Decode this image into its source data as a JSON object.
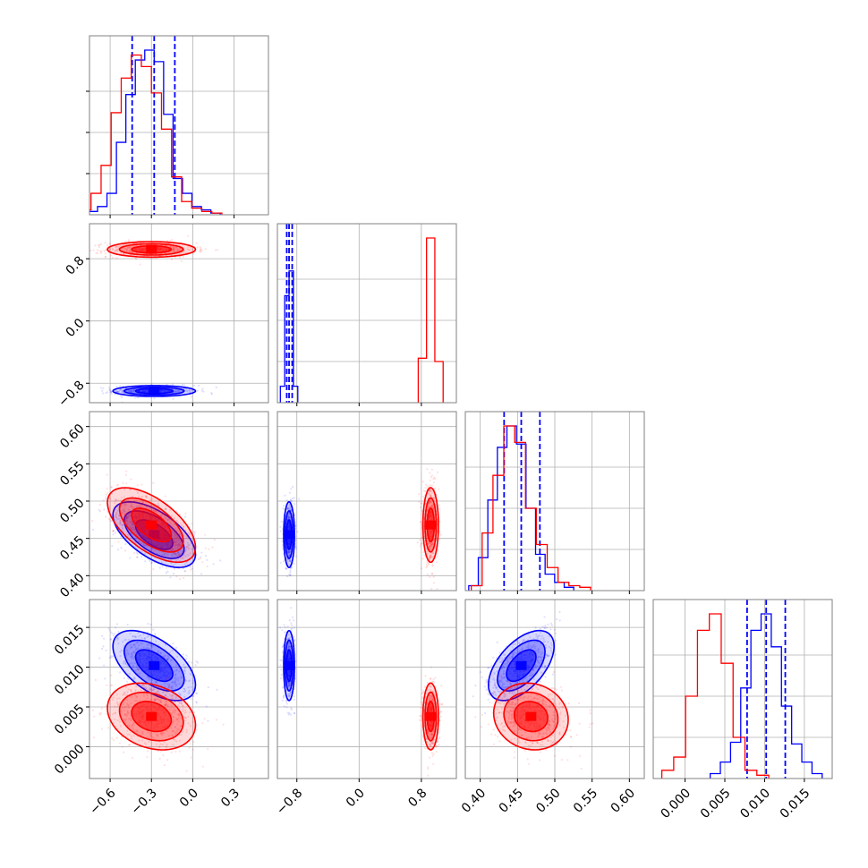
{
  "chart_data": {
    "type": "corner",
    "parameters": [
      {
        "ticks": [
          -0.6,
          -0.3,
          0.0,
          0.3
        ],
        "tick_labels": [
          "−0.6",
          "−0.3",
          "0.0",
          "0.3"
        ],
        "range": [
          -0.75,
          0.55
        ]
      },
      {
        "ticks": [
          -0.8,
          0.0,
          0.8
        ],
        "tick_labels": [
          "−0.8",
          "0.0",
          "0.8"
        ],
        "range": [
          -1.05,
          1.25
        ]
      },
      {
        "ticks": [
          0.4,
          0.45,
          0.5,
          0.55,
          0.6
        ],
        "tick_labels": [
          "0.40",
          "0.45",
          "0.50",
          "0.55",
          "0.60"
        ],
        "range": [
          0.38,
          0.62
        ]
      },
      {
        "ticks": [
          0.0,
          0.005,
          0.01,
          0.015
        ],
        "tick_labels": [
          "0.000",
          "0.005",
          "0.010",
          "0.015"
        ],
        "range": [
          -0.004,
          0.0185
        ]
      }
    ],
    "series": [
      {
        "color": "#0000ff",
        "means": [
          -0.28,
          -0.9,
          0.455,
          0.0102
        ],
        "sds": [
          0.15,
          0.035,
          0.022,
          0.0022
        ],
        "correlations": [
          [
            0,
            2,
            -0.6
          ],
          [
            0,
            3,
            -0.55
          ],
          [
            2,
            3,
            0.55
          ]
        ],
        "quantiles": [
          [
            -0.44,
            -0.28,
            -0.13
          ],
          [
            -0.93,
            -0.9,
            -0.86
          ],
          [
            0.432,
            0.455,
            0.48
          ],
          [
            0.0078,
            0.0102,
            0.0126
          ]
        ],
        "hist": [
          [
            0.02,
            0.05,
            0.13,
            0.44,
            0.73,
            0.94,
            1.0,
            0.93,
            0.61,
            0.22,
            0.13,
            0.05,
            0.03,
            0.01
          ],
          [
            0.1,
            0.65,
            0.8,
            0.1
          ],
          [
            0.03,
            0.2,
            0.55,
            0.87,
            1.0,
            0.89,
            0.5,
            0.22,
            0.1,
            0.05,
            0.02
          ],
          [
            0.03,
            0.1,
            0.22,
            0.55,
            0.9,
            1.0,
            0.8,
            0.44,
            0.21,
            0.1,
            0.03
          ]
        ]
      },
      {
        "color": "#ff0000",
        "means": [
          -0.3,
          0.92,
          0.468,
          0.0038
        ],
        "sds": [
          0.16,
          0.05,
          0.025,
          0.0021
        ],
        "correlations": [
          [
            0,
            2,
            -0.6
          ],
          [
            0,
            3,
            -0.25
          ],
          [
            2,
            3,
            -0.1
          ]
        ],
        "hist": [
          [
            0.03,
            0.13,
            0.3,
            0.62,
            0.83,
            0.97,
            0.9,
            0.74,
            0.52,
            0.23,
            0.08,
            0.04,
            0.02,
            0.01
          ],
          [
            0.27,
            1.0,
            0.25
          ],
          [
            0.03,
            0.35,
            0.7,
            1.0,
            0.9,
            0.5,
            0.28,
            0.14,
            0.05,
            0.03,
            0.02
          ],
          [
            0.05,
            0.13,
            0.5,
            0.9,
            1.0,
            0.7,
            0.25,
            0.05,
            0.02
          ]
        ]
      }
    ]
  }
}
